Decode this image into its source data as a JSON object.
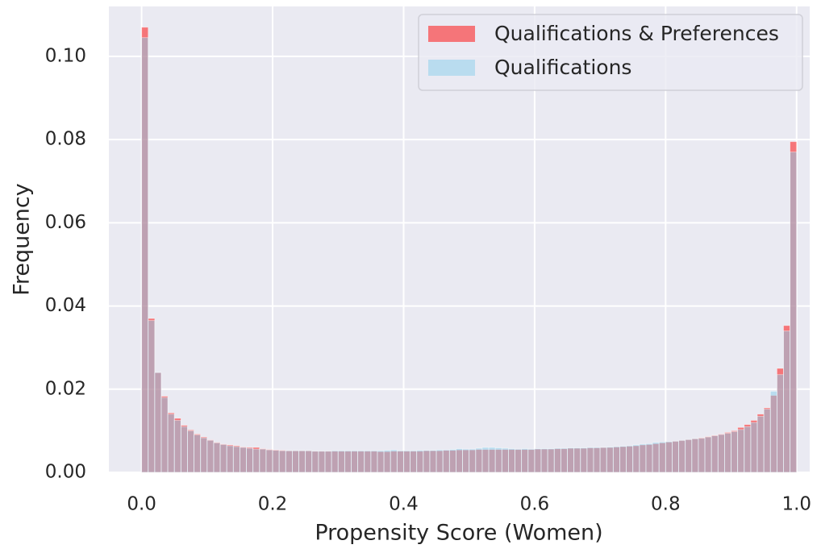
{
  "chart_data": {
    "type": "histogram",
    "xlabel": "Propensity Score (Women)",
    "ylabel": "Frequency",
    "bins": [
      0,
      0.01,
      0.02,
      0.03,
      0.04,
      0.05,
      0.06,
      0.07,
      0.08,
      0.09,
      0.1,
      0.11,
      0.12,
      0.13,
      0.14,
      0.15,
      0.16,
      0.17,
      0.18,
      0.19,
      0.2,
      0.21,
      0.22,
      0.23,
      0.24,
      0.25,
      0.26,
      0.27,
      0.28,
      0.29,
      0.3,
      0.31,
      0.32,
      0.33,
      0.34,
      0.35,
      0.36,
      0.37,
      0.38,
      0.39,
      0.4,
      0.41,
      0.42,
      0.43,
      0.44,
      0.45,
      0.46,
      0.47,
      0.48,
      0.49,
      0.5,
      0.51,
      0.52,
      0.53,
      0.54,
      0.55,
      0.56,
      0.57,
      0.58,
      0.59,
      0.6,
      0.61,
      0.62,
      0.63,
      0.64,
      0.65,
      0.66,
      0.67,
      0.68,
      0.69,
      0.7,
      0.71,
      0.72,
      0.73,
      0.74,
      0.75,
      0.76,
      0.77,
      0.78,
      0.79,
      0.8,
      0.81,
      0.82,
      0.83,
      0.84,
      0.85,
      0.86,
      0.87,
      0.88,
      0.89,
      0.9,
      0.91,
      0.92,
      0.93,
      0.94,
      0.95,
      0.96,
      0.97,
      0.98,
      0.99,
      1
    ],
    "series": [
      {
        "name": "Qualifications & Preferences",
        "color": "#ff0000",
        "opacity": 0.5,
        "values": [
          0.107,
          0.037,
          0.024,
          0.0183,
          0.0143,
          0.013,
          0.0113,
          0.0102,
          0.0092,
          0.0085,
          0.0078,
          0.0072,
          0.0068,
          0.0066,
          0.0064,
          0.0061,
          0.006,
          0.006,
          0.0057,
          0.0055,
          0.0054,
          0.0053,
          0.0052,
          0.0052,
          0.0052,
          0.0052,
          0.0051,
          0.0051,
          0.0051,
          0.0051,
          0.0051,
          0.0051,
          0.0051,
          0.0051,
          0.0051,
          0.0051,
          0.005,
          0.005,
          0.0051,
          0.0051,
          0.0051,
          0.0051,
          0.0051,
          0.0052,
          0.0052,
          0.0052,
          0.0053,
          0.0053,
          0.0054,
          0.0054,
          0.0054,
          0.0055,
          0.0055,
          0.0055,
          0.0055,
          0.0055,
          0.0055,
          0.0055,
          0.0055,
          0.0055,
          0.0056,
          0.0056,
          0.0056,
          0.0057,
          0.0057,
          0.0058,
          0.0058,
          0.0058,
          0.0059,
          0.0059,
          0.006,
          0.006,
          0.0061,
          0.0062,
          0.0063,
          0.0064,
          0.0066,
          0.0067,
          0.0069,
          0.0071,
          0.0073,
          0.0075,
          0.0077,
          0.0079,
          0.0081,
          0.0083,
          0.0086,
          0.0089,
          0.0092,
          0.0096,
          0.01,
          0.0108,
          0.0115,
          0.0125,
          0.014,
          0.0155,
          0.0185,
          0.025,
          0.0353,
          0.0795
        ]
      },
      {
        "name": "Qualifications",
        "color": "#87ceeb",
        "opacity": 0.5,
        "values": [
          0.1045,
          0.0365,
          0.024,
          0.018,
          0.014,
          0.0125,
          0.011,
          0.01,
          0.009,
          0.0083,
          0.0077,
          0.0071,
          0.0067,
          0.0064,
          0.0062,
          0.006,
          0.0058,
          0.0056,
          0.0056,
          0.0054,
          0.0053,
          0.0052,
          0.0052,
          0.0052,
          0.0052,
          0.0052,
          0.0051,
          0.0051,
          0.0051,
          0.0052,
          0.0052,
          0.0052,
          0.0052,
          0.0052,
          0.0052,
          0.0052,
          0.0052,
          0.0053,
          0.0054,
          0.0052,
          0.0052,
          0.0052,
          0.0053,
          0.0053,
          0.0053,
          0.0054,
          0.0054,
          0.0055,
          0.0057,
          0.0056,
          0.0056,
          0.0058,
          0.006,
          0.006,
          0.0059,
          0.0058,
          0.0057,
          0.0056,
          0.0057,
          0.0056,
          0.0057,
          0.0057,
          0.0057,
          0.0058,
          0.0058,
          0.0059,
          0.0059,
          0.0059,
          0.006,
          0.006,
          0.006,
          0.0061,
          0.0062,
          0.0063,
          0.0064,
          0.0066,
          0.0068,
          0.0069,
          0.0072,
          0.0073,
          0.0074,
          0.0075,
          0.0077,
          0.0079,
          0.0081,
          0.0082,
          0.0085,
          0.0088,
          0.0091,
          0.0094,
          0.0098,
          0.0103,
          0.011,
          0.012,
          0.0135,
          0.0152,
          0.0195,
          0.0235,
          0.034,
          0.077
        ]
      }
    ],
    "xlim": [
      -0.05,
      1.02
    ],
    "ylim": [
      0,
      0.112
    ],
    "xticks": [
      {
        "value": 0,
        "label": "0.0"
      },
      0.2,
      0.4,
      0.6,
      0.8,
      {
        "value": 1,
        "label": "1.0"
      }
    ],
    "yticks": [
      {
        "value": 0,
        "label": "0.00"
      },
      {
        "value": 0.02,
        "label": "0.02"
      },
      {
        "value": 0.04,
        "label": "0.04"
      },
      {
        "value": 0.06,
        "label": "0.06"
      },
      {
        "value": 0.08,
        "label": "0.08"
      },
      {
        "value": 0.1,
        "label": "0.10"
      }
    ],
    "grid": true,
    "legend": "upper right"
  }
}
